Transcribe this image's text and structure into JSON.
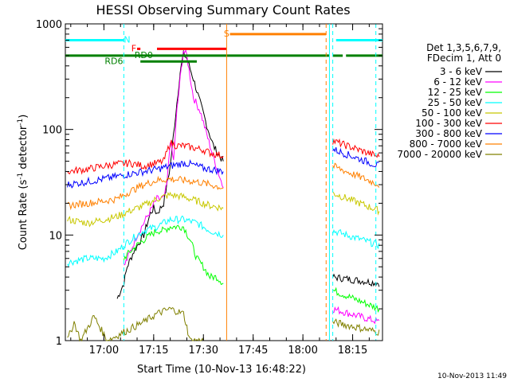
{
  "chart_data": {
    "type": "line",
    "title": "HESSI Observing Summary Count Rates",
    "xlabel": "Start Time (10-Nov-13 16:48:22)",
    "ylabel": "Count Rate (s",
    "ylabel_sup1": "-1",
    "ylabel_mid": " detector",
    "ylabel_sup2": "-1",
    "ylabel_end": ")",
    "y_scale": "log",
    "ylim": [
      1,
      1000
    ],
    "xlim": [
      "16:48:22",
      "18:24:00"
    ],
    "x_ticks": [
      "17:00",
      "17:15",
      "17:30",
      "17:45",
      "18:00",
      "18:15"
    ],
    "y_ticks": [
      "1",
      "10",
      "100",
      "1000"
    ],
    "legend_header": [
      "Det 1,3,5,6,7,9,",
      "FDecim 1, Att 0"
    ],
    "series": [
      {
        "name": "3 - 6 keV",
        "color": "#000000",
        "points": [
          [
            "17:04",
            2.5
          ],
          [
            "17:06",
            3.5
          ],
          [
            "17:07",
            5
          ],
          [
            "17:09",
            7
          ],
          [
            "17:12",
            10
          ],
          [
            "17:14",
            16
          ],
          [
            "17:15",
            18
          ],
          [
            "17:16",
            16
          ],
          [
            "17:18",
            20
          ],
          [
            "17:20",
            45
          ],
          [
            "17:22",
            180
          ],
          [
            "17:23",
            350
          ],
          [
            "17:24",
            520
          ],
          [
            "17:25",
            470
          ],
          [
            "17:27",
            300
          ],
          [
            "17:29",
            180
          ],
          [
            "17:31",
            110
          ],
          [
            "17:33",
            70
          ],
          [
            "17:35",
            55
          ],
          [
            "17:36",
            50
          ]
        ]
      },
      {
        "name": "6 - 12 keV",
        "color": "#ff00ff",
        "points": [
          [
            "17:06",
            5
          ],
          [
            "17:08",
            7
          ],
          [
            "17:10",
            10
          ],
          [
            "17:12",
            13
          ],
          [
            "17:14",
            17
          ],
          [
            "17:16",
            22
          ],
          [
            "17:18",
            22
          ],
          [
            "17:19",
            30
          ],
          [
            "17:20",
            80
          ],
          [
            "17:21",
            50
          ],
          [
            "17:22",
            150
          ],
          [
            "17:23",
            300
          ],
          [
            "17:24",
            560
          ],
          [
            "17:25",
            500
          ],
          [
            "17:27",
            200
          ],
          [
            "17:29",
            150
          ],
          [
            "17:31",
            90
          ],
          [
            "17:33",
            55
          ],
          [
            "17:35",
            35
          ],
          [
            "17:36",
            28
          ]
        ]
      },
      {
        "name": "12 - 25 keV",
        "color": "#00ff00",
        "points": [
          [
            "17:06",
            6
          ],
          [
            "17:08",
            7
          ],
          [
            "17:10",
            8
          ],
          [
            "17:12",
            9
          ],
          [
            "17:14",
            10
          ],
          [
            "17:16",
            11
          ],
          [
            "17:18",
            11
          ],
          [
            "17:20",
            12
          ],
          [
            "17:22",
            12
          ],
          [
            "17:24",
            12
          ],
          [
            "17:26",
            9
          ],
          [
            "17:28",
            6
          ],
          [
            "17:30",
            5
          ],
          [
            "17:32",
            4
          ],
          [
            "17:34",
            4
          ],
          [
            "17:36",
            3.5
          ]
        ]
      },
      {
        "name": "25 - 50 keV",
        "color": "#00ffff",
        "points": [
          [
            "16:49",
            5.5
          ],
          [
            "16:55",
            6
          ],
          [
            "17:00",
            6
          ],
          [
            "17:04",
            7
          ],
          [
            "17:06",
            8
          ],
          [
            "17:08",
            9
          ],
          [
            "17:12",
            11
          ],
          [
            "17:16",
            12
          ],
          [
            "17:20",
            14
          ],
          [
            "17:24",
            14
          ],
          [
            "17:28",
            13
          ],
          [
            "17:32",
            11
          ],
          [
            "17:36",
            10
          ]
        ]
      },
      {
        "name": "50 - 100 keV",
        "color": "#c8c800",
        "points": [
          [
            "16:49",
            14
          ],
          [
            "16:55",
            13
          ],
          [
            "17:00",
            14
          ],
          [
            "17:04",
            15
          ],
          [
            "17:08",
            17
          ],
          [
            "17:12",
            19
          ],
          [
            "17:16",
            22
          ],
          [
            "17:20",
            24
          ],
          [
            "17:24",
            23
          ],
          [
            "17:28",
            21
          ],
          [
            "17:32",
            19
          ],
          [
            "17:36",
            18
          ]
        ]
      },
      {
        "name": "100 - 300 keV",
        "color": "#ff0000",
        "points": [
          [
            "16:49",
            40
          ],
          [
            "16:55",
            42
          ],
          [
            "17:00",
            45
          ],
          [
            "17:04",
            47
          ],
          [
            "17:08",
            48
          ],
          [
            "17:12",
            45
          ],
          [
            "17:16",
            48
          ],
          [
            "17:18",
            50
          ],
          [
            "17:20",
            75
          ],
          [
            "17:22",
            70
          ],
          [
            "17:24",
            70
          ],
          [
            "17:26",
            68
          ],
          [
            "17:28",
            66
          ],
          [
            "17:30",
            64
          ],
          [
            "17:32",
            60
          ],
          [
            "17:34",
            58
          ],
          [
            "17:36",
            56
          ]
        ]
      },
      {
        "name": "300 - 800 keV",
        "color": "#0000ff",
        "points": [
          [
            "16:49",
            30
          ],
          [
            "16:55",
            32
          ],
          [
            "17:00",
            34
          ],
          [
            "17:04",
            36
          ],
          [
            "17:08",
            38
          ],
          [
            "17:12",
            40
          ],
          [
            "17:16",
            42
          ],
          [
            "17:20",
            45
          ],
          [
            "17:24",
            48
          ],
          [
            "17:26",
            47
          ],
          [
            "17:28",
            45
          ],
          [
            "17:30",
            43
          ],
          [
            "17:32",
            42
          ],
          [
            "17:34",
            41
          ],
          [
            "17:36",
            40
          ]
        ]
      },
      {
        "name": "800 - 7000 keV",
        "color": "#ff8000",
        "points": [
          [
            "16:49",
            19
          ],
          [
            "16:55",
            20
          ],
          [
            "17:00",
            21
          ],
          [
            "17:04",
            22
          ],
          [
            "17:08",
            26
          ],
          [
            "17:12",
            30
          ],
          [
            "17:16",
            33
          ],
          [
            "17:20",
            34
          ],
          [
            "17:24",
            33
          ],
          [
            "17:28",
            32
          ],
          [
            "17:32",
            30
          ],
          [
            "17:36",
            28
          ]
        ]
      },
      {
        "name": "7000 - 20000 keV",
        "color": "#808000",
        "points": [
          [
            "16:49",
            1
          ],
          [
            "16:51",
            1.5
          ],
          [
            "16:53",
            1
          ],
          [
            "16:57",
            1.7
          ],
          [
            "17:01",
            1
          ],
          [
            "17:12",
            1.5
          ],
          [
            "17:16",
            1.8
          ],
          [
            "17:20",
            2
          ],
          [
            "17:24",
            1.8
          ],
          [
            "17:26",
            1
          ],
          [
            "17:30",
            1
          ]
        ]
      }
    ],
    "segment2": {
      "start": "18:09",
      "end": "18:23",
      "values": {
        "3 - 6 keV": [
          4,
          3.5
        ],
        "6 - 12 keV": [
          2,
          1.5
        ],
        "12 - 25 keV": [
          3,
          2
        ],
        "25 - 50 keV": [
          11,
          8
        ],
        "50 - 100 keV": [
          25,
          17
        ],
        "100 - 300 keV": [
          78,
          55
        ],
        "300 - 800 keV": [
          65,
          45
        ],
        "800 - 7000 keV": [
          45,
          30
        ],
        "7000 - 20000 keV": [
          1.5,
          1.2
        ]
      }
    },
    "flag_bars": [
      {
        "label": "N",
        "color": "#00ffff",
        "level": 700,
        "ranges": [
          [
            "16:48:22",
            "17:06"
          ],
          [
            "18:10",
            "18:24"
          ]
        ],
        "label_at": "17:07"
      },
      {
        "label": "S",
        "color": "#ff8000",
        "level": 800,
        "ranges": [
          [
            "17:38",
            "18:07"
          ]
        ],
        "label_at": "17:37"
      },
      {
        "label": "F",
        "color": "#ff0000",
        "level": 580,
        "ranges": [
          [
            "17:10",
            "17:11"
          ],
          [
            "17:16",
            "17:37"
          ]
        ],
        "label_at": "17:09"
      },
      {
        "label": "RD0",
        "color": "#008000",
        "level": 500,
        "ranges": [
          [
            "16:48:22",
            "18:08"
          ],
          [
            "18:09",
            "18:12"
          ],
          [
            "18:13",
            "18:24"
          ]
        ],
        "label_at": "17:12"
      },
      {
        "label": "RD6",
        "color": "#008000",
        "level": 440,
        "ranges": [
          [
            "17:11",
            "17:28"
          ]
        ],
        "label_at": "17:03"
      }
    ],
    "verticals": [
      {
        "time": "17:06",
        "color": "#00ffff",
        "style": "dashed"
      },
      {
        "time": "17:37",
        "color": "#ff8000",
        "style": "solid"
      },
      {
        "time": "18:07",
        "color": "#ff8000",
        "style": "dashed"
      },
      {
        "time": "18:08",
        "color": "#00ffff",
        "style": "solid"
      },
      {
        "time": "18:09",
        "color": "#00ffff",
        "style": "dashed"
      },
      {
        "time": "18:22",
        "color": "#00ffff",
        "style": "dashed"
      }
    ],
    "grid": false,
    "legend_position": "right"
  },
  "footer": {
    "timestamp": "10-Nov-2013 11:49"
  }
}
